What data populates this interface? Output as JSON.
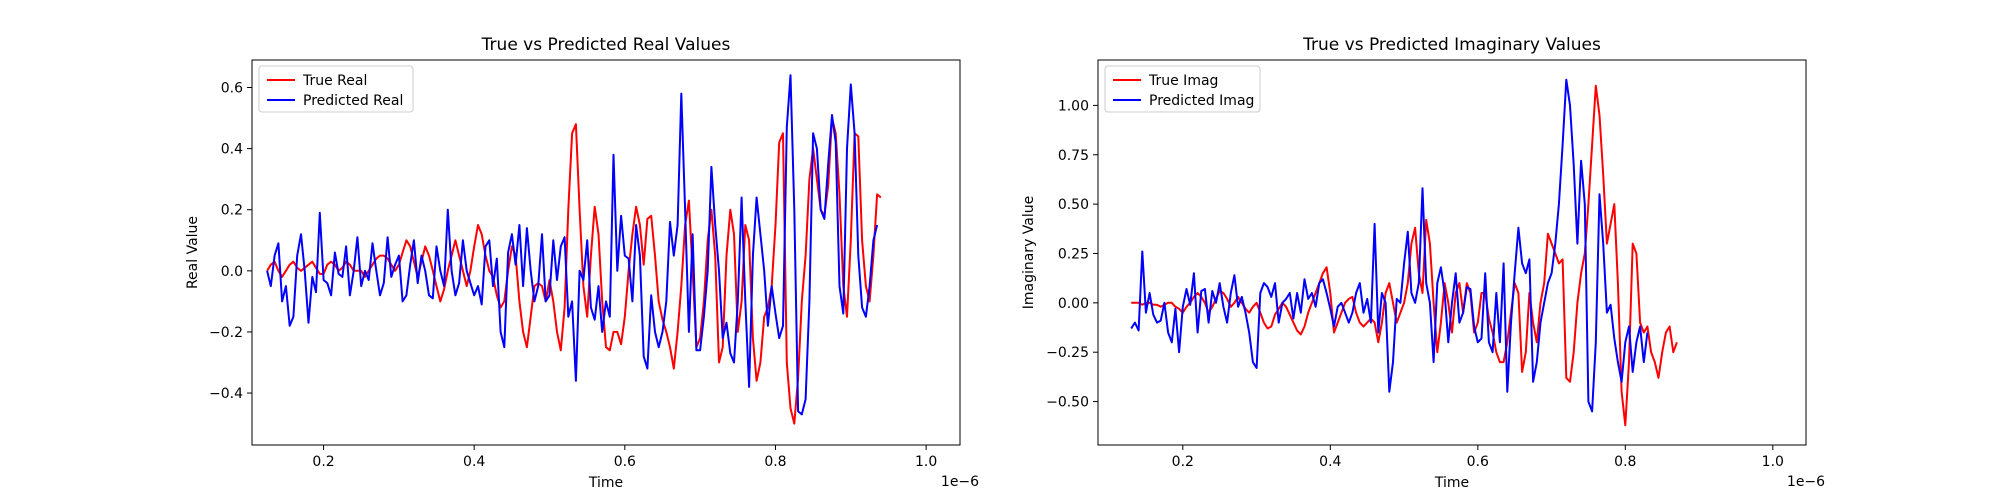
{
  "chart_data": [
    {
      "type": "line",
      "title": "True vs Predicted Real Values",
      "xlabel": "Time",
      "ylabel": "Real Value",
      "x_multiplier": "1e−6",
      "xlim": [
        0.105,
        1.045
      ],
      "ylim": [
        -0.57,
        0.69
      ],
      "xticks": [
        0.2,
        0.4,
        0.6,
        0.8,
        1.0
      ],
      "xtick_labels": [
        "0.2",
        "0.4",
        "0.6",
        "0.8",
        "1.0"
      ],
      "yticks": [
        -0.4,
        -0.2,
        0.0,
        0.2,
        0.4,
        0.6
      ],
      "ytick_labels": [
        "−0.4",
        "−0.2",
        "0.0",
        "0.2",
        "0.4",
        "0.6"
      ],
      "grid": false,
      "legend_position": "top-left",
      "x_start": 0.125,
      "x_step": 0.005,
      "series": [
        {
          "name": "True Real",
          "color": "#ff0000",
          "values": [
            0.0,
            0.02,
            0.03,
            0.0,
            -0.02,
            0.0,
            0.02,
            0.03,
            0.01,
            0.0,
            0.01,
            0.02,
            0.03,
            0.01,
            -0.01,
            -0.01,
            0.02,
            0.03,
            0.02,
            0.0,
            0.01,
            0.03,
            0.02,
            0.0,
            0.0,
            0.0,
            -0.02,
            0.0,
            0.02,
            0.04,
            0.05,
            0.05,
            0.04,
            0.02,
            0.0,
            0.02,
            0.06,
            0.1,
            0.08,
            0.03,
            -0.02,
            0.03,
            0.08,
            0.05,
            0.0,
            -0.05,
            -0.1,
            -0.06,
            0.0,
            0.05,
            0.1,
            0.05,
            0.0,
            -0.05,
            0.0,
            0.08,
            0.15,
            0.12,
            0.05,
            0.0,
            -0.02,
            -0.08,
            -0.12,
            -0.1,
            0.0,
            0.08,
            0.05,
            -0.1,
            -0.2,
            -0.25,
            -0.15,
            -0.05,
            -0.04,
            -0.05,
            -0.1,
            -0.03,
            -0.1,
            -0.2,
            -0.26,
            -0.12,
            0.2,
            0.45,
            0.48,
            0.2,
            -0.05,
            -0.15,
            0.05,
            0.21,
            0.12,
            -0.1,
            -0.25,
            -0.26,
            -0.2,
            -0.2,
            -0.24,
            -0.15,
            0.0,
            0.12,
            0.21,
            0.15,
            0.02,
            0.17,
            0.18,
            0.05,
            -0.1,
            -0.16,
            -0.2,
            -0.25,
            -0.32,
            -0.2,
            -0.05,
            0.15,
            0.23,
            0.0,
            -0.25,
            -0.22,
            -0.1,
            0.1,
            0.2,
            0.05,
            -0.3,
            -0.25,
            0.05,
            0.2,
            0.12,
            -0.2,
            -0.1,
            0.15,
            0.1,
            -0.22,
            -0.36,
            -0.3,
            -0.15,
            -0.12,
            -0.05,
            0.15,
            0.42,
            0.45,
            -0.3,
            -0.45,
            -0.5,
            -0.35,
            -0.1,
            0.05,
            0.3,
            0.4,
            0.3,
            0.2,
            0.18,
            0.28,
            0.5,
            0.45,
            0.25,
            -0.05,
            -0.15,
            0.1,
            0.45,
            0.44,
            0.1,
            -0.05,
            -0.1,
            0.05,
            0.25,
            0.24
          ]
        },
        {
          "name": "Predicted Real",
          "color": "#0000ff",
          "values": [
            0.0,
            -0.05,
            0.05,
            0.09,
            -0.1,
            -0.05,
            -0.18,
            -0.15,
            0.05,
            0.12,
            0.0,
            -0.17,
            -0.02,
            -0.07,
            0.19,
            -0.03,
            -0.04,
            -0.08,
            0.06,
            -0.01,
            -0.02,
            0.08,
            -0.08,
            0.0,
            0.11,
            -0.05,
            0.0,
            -0.03,
            0.09,
            0.0,
            -0.08,
            -0.04,
            0.11,
            -0.02,
            0.02,
            0.05,
            -0.1,
            -0.08,
            0.02,
            0.1,
            -0.04,
            0.05,
            0.0,
            -0.08,
            -0.09,
            0.08,
            0.0,
            -0.05,
            0.2,
            0.0,
            -0.08,
            -0.04,
            0.1,
            0.0,
            -0.04,
            -0.08,
            -0.05,
            -0.11,
            0.08,
            0.1,
            -0.05,
            0.04,
            -0.2,
            -0.25,
            0.06,
            0.12,
            0.02,
            0.15,
            -0.05,
            0.14,
            0.0,
            -0.1,
            -0.05,
            0.12,
            -0.1,
            -0.08,
            0.1,
            -0.03,
            0.08,
            0.11,
            -0.15,
            -0.1,
            -0.36,
            0.0,
            -0.03,
            0.1,
            -0.12,
            -0.16,
            -0.05,
            -0.2,
            -0.1,
            -0.15,
            0.38,
            0.0,
            0.18,
            0.05,
            0.04,
            -0.1,
            0.15,
            0.05,
            -0.28,
            -0.32,
            -0.08,
            -0.2,
            -0.25,
            -0.2,
            -0.1,
            0.16,
            0.05,
            0.15,
            0.58,
            0.2,
            -0.2,
            0.12,
            -0.26,
            -0.26,
            -0.15,
            0.0,
            0.34,
            0.15,
            0.0,
            -0.22,
            -0.17,
            -0.27,
            -0.3,
            -0.1,
            0.24,
            -0.1,
            -0.38,
            0.05,
            0.24,
            0.12,
            0.0,
            -0.18,
            -0.05,
            -0.14,
            -0.22,
            -0.18,
            0.47,
            0.64,
            0.2,
            -0.46,
            -0.47,
            -0.42,
            -0.1,
            0.45,
            0.4,
            0.2,
            0.17,
            0.35,
            0.51,
            0.42,
            -0.05,
            -0.14,
            0.4,
            0.61,
            0.45,
            0.05,
            -0.12,
            -0.15,
            -0.05,
            0.1,
            0.15
          ]
        }
      ]
    },
    {
      "type": "line",
      "title": "True vs Predicted Imaginary Values",
      "xlabel": "Time",
      "ylabel": "Imaginary Value",
      "x_multiplier": "1e−6",
      "xlim": [
        0.085,
        1.045
      ],
      "ylim": [
        -0.72,
        1.23
      ],
      "xticks": [
        0.2,
        0.4,
        0.6,
        0.8,
        1.0
      ],
      "xtick_labels": [
        "0.2",
        "0.4",
        "0.6",
        "0.8",
        "1.0"
      ],
      "yticks": [
        -0.5,
        -0.25,
        0.0,
        0.25,
        0.5,
        0.75,
        1.0
      ],
      "ytick_labels": [
        "−0.50",
        "−0.25",
        "0.00",
        "0.25",
        "0.50",
        "0.75",
        "1.00"
      ],
      "grid": false,
      "legend_position": "top-left",
      "x_start": 0.13,
      "x_step": 0.005,
      "series": [
        {
          "name": "True Imag",
          "color": "#ff0000",
          "values": [
            0.0,
            0.0,
            0.0,
            -0.01,
            0.0,
            0.0,
            -0.01,
            -0.01,
            -0.02,
            -0.01,
            0.0,
            0.0,
            -0.02,
            -0.03,
            -0.05,
            -0.02,
            0.0,
            0.03,
            0.05,
            0.03,
            0.0,
            -0.05,
            -0.02,
            0.02,
            0.06,
            0.05,
            0.02,
            -0.02,
            0.0,
            0.03,
            0.0,
            -0.03,
            -0.05,
            -0.02,
            0.0,
            -0.05,
            -0.1,
            -0.13,
            -0.12,
            -0.06,
            -0.03,
            0.0,
            -0.02,
            -0.06,
            -0.1,
            -0.14,
            -0.16,
            -0.12,
            -0.05,
            0.0,
            0.05,
            0.1,
            0.15,
            0.18,
            0.05,
            -0.15,
            -0.1,
            -0.05,
            0.0,
            0.02,
            0.03,
            -0.05,
            -0.1,
            -0.12,
            -0.1,
            -0.08,
            -0.1,
            -0.2,
            -0.1,
            0.05,
            0.1,
            0.0,
            -0.1,
            -0.05,
            0.0,
            0.1,
            0.3,
            0.38,
            0.15,
            0.05,
            0.42,
            0.3,
            0.0,
            -0.25,
            -0.1,
            0.1,
            0.0,
            -0.15,
            0.05,
            0.1,
            -0.05,
            0.1,
            0.05,
            -0.15,
            -0.1,
            0.05,
            0.05,
            -0.08,
            -0.15,
            -0.25,
            -0.3,
            -0.3,
            -0.2,
            -0.05,
            0.1,
            0.05,
            -0.35,
            -0.25,
            0.05,
            -0.1,
            -0.2,
            0.0,
            0.1,
            0.35,
            0.3,
            0.25,
            0.2,
            0.22,
            -0.38,
            -0.4,
            -0.25,
            0.0,
            0.15,
            0.25,
            0.5,
            0.8,
            1.1,
            0.95,
            0.65,
            0.3,
            0.4,
            0.5,
            0.1,
            -0.45,
            -0.62,
            -0.3,
            0.3,
            0.25,
            -0.1,
            -0.15,
            -0.12,
            -0.25,
            -0.3,
            -0.38,
            -0.25,
            -0.15,
            -0.12,
            -0.25,
            -0.2
          ]
        },
        {
          "name": "Predicted Imag",
          "color": "#0000ff",
          "values": [
            -0.13,
            -0.1,
            -0.14,
            0.26,
            -0.05,
            0.05,
            -0.06,
            -0.1,
            -0.09,
            0.0,
            -0.15,
            -0.2,
            -0.03,
            -0.25,
            -0.02,
            0.07,
            -0.01,
            0.15,
            -0.15,
            0.06,
            0.07,
            -0.1,
            0.06,
            0.0,
            0.1,
            -0.02,
            -0.1,
            0.05,
            0.14,
            -0.02,
            0.03,
            -0.05,
            -0.15,
            -0.3,
            -0.33,
            0.05,
            0.1,
            0.08,
            0.03,
            0.1,
            -0.1,
            0.0,
            0.02,
            0.05,
            -0.08,
            0.05,
            -0.05,
            0.12,
            0.02,
            0.05,
            -0.02,
            0.1,
            0.12,
            0.05,
            -0.03,
            -0.12,
            -0.02,
            0.0,
            -0.05,
            -0.1,
            -0.05,
            0.05,
            0.1,
            -0.05,
            0.02,
            -0.1,
            0.4,
            -0.15,
            0.05,
            0.0,
            -0.45,
            -0.3,
            0.02,
            0.0,
            0.2,
            0.36,
            0.05,
            0.0,
            0.1,
            0.58,
            0.1,
            0.0,
            -0.3,
            0.1,
            0.18,
            0.05,
            -0.2,
            0.0,
            0.15,
            -0.1,
            -0.05,
            0.08,
            0.07,
            -0.12,
            -0.2,
            -0.18,
            0.15,
            -0.2,
            -0.25,
            0.05,
            -0.2,
            0.2,
            -0.45,
            -0.1,
            0.15,
            0.38,
            0.2,
            0.15,
            0.22,
            -0.4,
            -0.3,
            -0.1,
            0.0,
            0.1,
            0.15,
            0.3,
            0.5,
            0.8,
            1.13,
            1.0,
            0.7,
            0.3,
            0.72,
            0.5,
            -0.5,
            -0.55,
            -0.2,
            0.55,
            0.3,
            -0.05,
            -0.01,
            -0.18,
            -0.3,
            -0.4,
            -0.2,
            -0.12,
            -0.35,
            -0.2,
            -0.12,
            -0.3,
            -0.15
          ]
        }
      ]
    }
  ]
}
